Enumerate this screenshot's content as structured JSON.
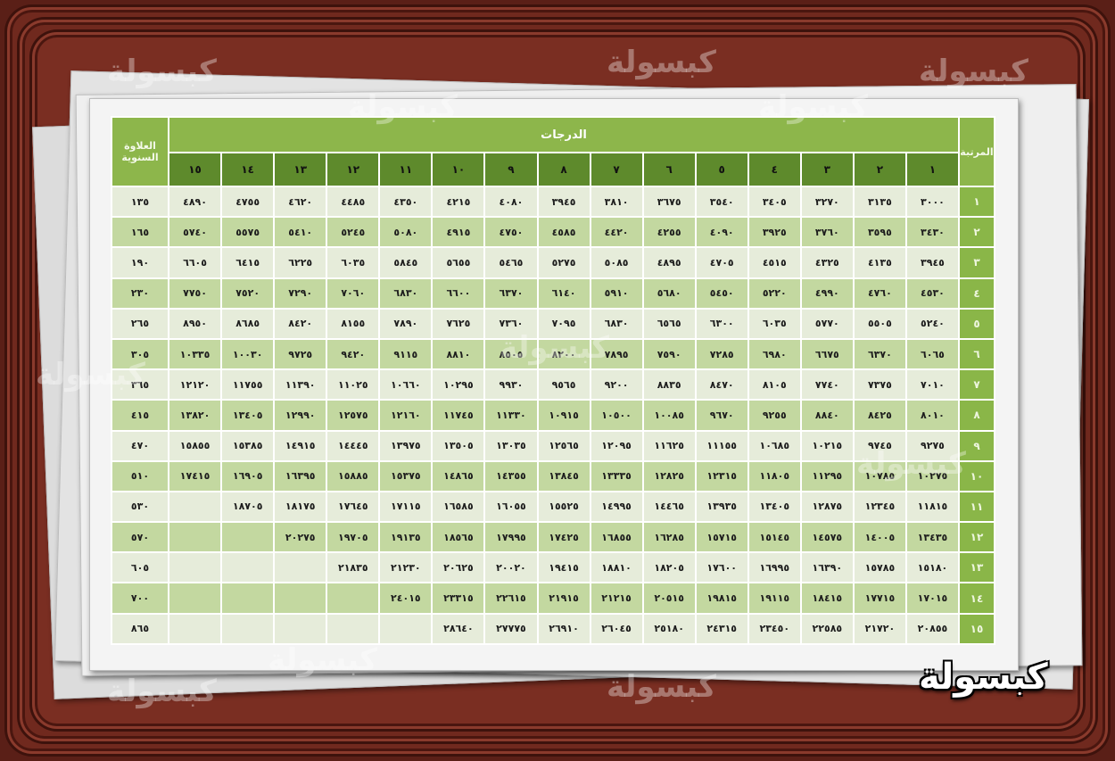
{
  "colors": {
    "frame": "#5a1f17",
    "header_green": "#8db64b",
    "grade_header": "#5e8a2c",
    "row_light": "#e6ecda",
    "row_green": "#c3d8a0"
  },
  "table": {
    "title": "الدرجات",
    "rank_header": "المرتبة",
    "raise_header": "العلاوة السنوية",
    "grades": [
      "١",
      "٢",
      "٣",
      "٤",
      "٥",
      "٦",
      "٧",
      "٨",
      "٩",
      "١٠",
      "١١",
      "١٢",
      "١٣",
      "١٤",
      "١٥"
    ],
    "rows": [
      {
        "rank": "١",
        "raise": "١٣٥",
        "values": [
          "٣٠٠٠",
          "٣١٣٥",
          "٣٢٧٠",
          "٣٤٠٥",
          "٣٥٤٠",
          "٣٦٧٥",
          "٣٨١٠",
          "٣٩٤٥",
          "٤٠٨٠",
          "٤٢١٥",
          "٤٣٥٠",
          "٤٤٨٥",
          "٤٦٢٠",
          "٤٧٥٥",
          "٤٨٩٠"
        ]
      },
      {
        "rank": "٢",
        "raise": "١٦٥",
        "values": [
          "٣٤٣٠",
          "٣٥٩٥",
          "٣٧٦٠",
          "٣٩٢٥",
          "٤٠٩٠",
          "٤٢٥٥",
          "٤٤٢٠",
          "٤٥٨٥",
          "٤٧٥٠",
          "٤٩١٥",
          "٥٠٨٠",
          "٥٢٤٥",
          "٥٤١٠",
          "٥٥٧٥",
          "٥٧٤٠"
        ]
      },
      {
        "rank": "٣",
        "raise": "١٩٠",
        "values": [
          "٣٩٤٥",
          "٤١٣٥",
          "٤٣٢٥",
          "٤٥١٥",
          "٤٧٠٥",
          "٤٨٩٥",
          "٥٠٨٥",
          "٥٢٧٥",
          "٥٤٦٥",
          "٥٦٥٥",
          "٥٨٤٥",
          "٦٠٣٥",
          "٦٢٢٥",
          "٦٤١٥",
          "٦٦٠٥"
        ]
      },
      {
        "rank": "٤",
        "raise": "٢٣٠",
        "values": [
          "٤٥٣٠",
          "٤٧٦٠",
          "٤٩٩٠",
          "٥٢٢٠",
          "٥٤٥٠",
          "٥٦٨٠",
          "٥٩١٠",
          "٦١٤٠",
          "٦٣٧٠",
          "٦٦٠٠",
          "٦٨٣٠",
          "٧٠٦٠",
          "٧٢٩٠",
          "٧٥٢٠",
          "٧٧٥٠"
        ]
      },
      {
        "rank": "٥",
        "raise": "٢٦٥",
        "values": [
          "٥٢٤٠",
          "٥٥٠٥",
          "٥٧٧٠",
          "٦٠٣٥",
          "٦٣٠٠",
          "٦٥٦٥",
          "٦٨٣٠",
          "٧٠٩٥",
          "٧٣٦٠",
          "٧٦٢٥",
          "٧٨٩٠",
          "٨١٥٥",
          "٨٤٢٠",
          "٨٦٨٥",
          "٨٩٥٠"
        ]
      },
      {
        "rank": "٦",
        "raise": "٣٠٥",
        "values": [
          "٦٠٦٥",
          "٦٣٧٠",
          "٦٦٧٥",
          "٦٩٨٠",
          "٧٢٨٥",
          "٧٥٩٠",
          "٧٨٩٥",
          "٨٢٠٠",
          "٨٥٠٥",
          "٨٨١٠",
          "٩١١٥",
          "٩٤٢٠",
          "٩٧٢٥",
          "١٠٠٣٠",
          "١٠٣٣٥"
        ]
      },
      {
        "rank": "٧",
        "raise": "٣٦٥",
        "values": [
          "٧٠١٠",
          "٧٣٧٥",
          "٧٧٤٠",
          "٨١٠٥",
          "٨٤٧٠",
          "٨٨٣٥",
          "٩٢٠٠",
          "٩٥٦٥",
          "٩٩٣٠",
          "١٠٢٩٥",
          "١٠٦٦٠",
          "١١٠٢٥",
          "١١٣٩٠",
          "١١٧٥٥",
          "١٢١٢٠"
        ]
      },
      {
        "rank": "٨",
        "raise": "٤١٥",
        "values": [
          "٨٠١٠",
          "٨٤٢٥",
          "٨٨٤٠",
          "٩٢٥٥",
          "٩٦٧٠",
          "١٠٠٨٥",
          "١٠٥٠٠",
          "١٠٩١٥",
          "١١٣٣٠",
          "١١٧٤٥",
          "١٢١٦٠",
          "١٢٥٧٥",
          "١٢٩٩٠",
          "١٣٤٠٥",
          "١٣٨٢٠"
        ]
      },
      {
        "rank": "٩",
        "raise": "٤٧٠",
        "values": [
          "٩٢٧٥",
          "٩٧٤٥",
          "١٠٢١٥",
          "١٠٦٨٥",
          "١١١٥٥",
          "١١٦٢٥",
          "١٢٠٩٥",
          "١٢٥٦٥",
          "١٣٠٣٥",
          "١٣٥٠٥",
          "١٣٩٧٥",
          "١٤٤٤٥",
          "١٤٩١٥",
          "١٥٣٨٥",
          "١٥٨٥٥"
        ]
      },
      {
        "rank": "١٠",
        "raise": "٥١٠",
        "values": [
          "١٠٢٧٥",
          "١٠٧٨٥",
          "١١٢٩٥",
          "١١٨٠٥",
          "١٢٣١٥",
          "١٢٨٢٥",
          "١٣٣٣٥",
          "١٣٨٤٥",
          "١٤٣٥٥",
          "١٤٨٦٥",
          "١٥٣٧٥",
          "١٥٨٨٥",
          "١٦٣٩٥",
          "١٦٩٠٥",
          "١٧٤١٥"
        ]
      },
      {
        "rank": "١١",
        "raise": "٥٣٠",
        "values": [
          "١١٨١٥",
          "١٢٣٤٥",
          "١٢٨٧٥",
          "١٣٤٠٥",
          "١٣٩٣٥",
          "١٤٤٦٥",
          "١٤٩٩٥",
          "١٥٥٢٥",
          "١٦٠٥٥",
          "١٦٥٨٥",
          "١٧١١٥",
          "١٧٦٤٥",
          "١٨١٧٥",
          "١٨٧٠٥",
          ""
        ]
      },
      {
        "rank": "١٢",
        "raise": "٥٧٠",
        "values": [
          "١٣٤٣٥",
          "١٤٠٠٥",
          "١٤٥٧٥",
          "١٥١٤٥",
          "١٥٧١٥",
          "١٦٢٨٥",
          "١٦٨٥٥",
          "١٧٤٢٥",
          "١٧٩٩٥",
          "١٨٥٦٥",
          "١٩١٣٥",
          "١٩٧٠٥",
          "٢٠٢٧٥",
          "",
          ""
        ]
      },
      {
        "rank": "١٣",
        "raise": "٦٠٥",
        "values": [
          "١٥١٨٠",
          "١٥٧٨٥",
          "١٦٣٩٠",
          "١٦٩٩٥",
          "١٧٦٠٠",
          "١٨٢٠٥",
          "١٨٨١٠",
          "١٩٤١٥",
          "٢٠٠٢٠",
          "٢٠٦٢٥",
          "٢١٢٣٠",
          "٢١٨٣٥",
          "",
          "",
          ""
        ]
      },
      {
        "rank": "١٤",
        "raise": "٧٠٠",
        "values": [
          "١٧٠١٥",
          "١٧٧١٥",
          "١٨٤١٥",
          "١٩١١٥",
          "١٩٨١٥",
          "٢٠٥١٥",
          "٢١٢١٥",
          "٢١٩١٥",
          "٢٢٦١٥",
          "٢٣٣١٥",
          "٢٤٠١٥",
          "",
          "",
          "",
          ""
        ]
      },
      {
        "rank": "١٥",
        "raise": "٨٦٥",
        "values": [
          "٢٠٨٥٥",
          "٢١٧٢٠",
          "٢٢٥٨٥",
          "٢٣٤٥٠",
          "٢٤٣١٥",
          "٢٥١٨٠",
          "٢٦٠٤٥",
          "٢٦٩١٠",
          "٢٧٧٧٥",
          "٢٨٦٤٠",
          "",
          "",
          "",
          "",
          ""
        ]
      }
    ]
  },
  "brand": {
    "logo": "كبسولة",
    "watermark": "كبسولة"
  }
}
